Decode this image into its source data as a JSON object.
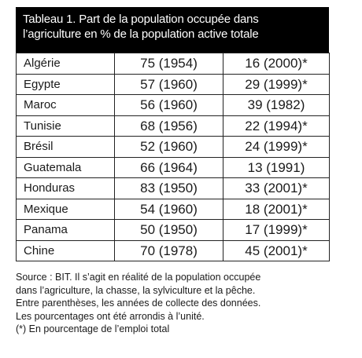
{
  "title_lines": [
    "Tableau 1. Part de la population occupée dans",
    "l’agriculture en % de la population active totale"
  ],
  "rows": [
    {
      "country": "Algérie",
      "first": "75 (1954)",
      "second": "16 (2000)*"
    },
    {
      "country": "Egypte",
      "first": "57 (1960)",
      "second": "29 (1999)*"
    },
    {
      "country": "Maroc",
      "first": "56 (1960)",
      "second": "39 (1982)"
    },
    {
      "country": "Tunisie",
      "first": "68 (1956)",
      "second": "22 (1994)*"
    },
    {
      "country": "Brésil",
      "first": "52 (1960)",
      "second": "24 (1999)*"
    },
    {
      "country": "Guatemala",
      "first": "66 (1964)",
      "second": "13 (1991)"
    },
    {
      "country": "Honduras",
      "first": "83 (1950)",
      "second": "33 (2001)*"
    },
    {
      "country": "Mexique",
      "first": "54 (1960)",
      "second": "18 (2001)*"
    },
    {
      "country": "Panama",
      "first": "50 (1950)",
      "second": "17 (1999)*"
    },
    {
      "country": "Chine",
      "first": "70 (1978)",
      "second": "45 (2001)*"
    }
  ],
  "source_lines": [
    "Source : BIT. Il s’agit en réalité de la population occupée",
    "dans l’agriculture, la chasse, la sylviculture et la pêche.",
    "Entre parenthèses, les années de collecte des données.",
    "Les pourcentages ont été arrondis à l’unité.",
    "(*) En pourcentage de l’emploi total"
  ]
}
